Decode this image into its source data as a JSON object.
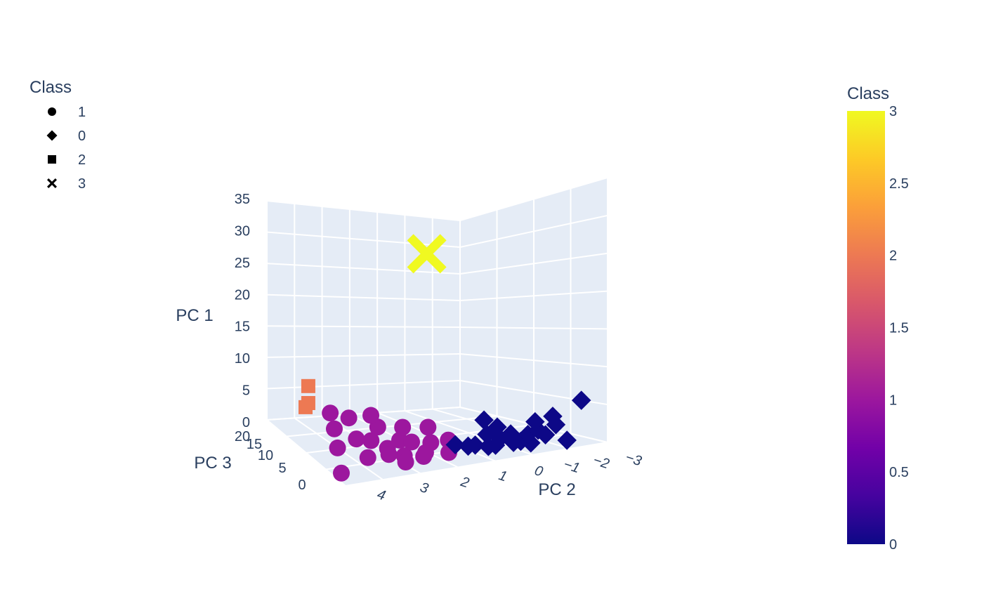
{
  "chart_data": {
    "type": "scatter",
    "dimensions": "3d",
    "title": "",
    "axes": {
      "x": {
        "label": "PC 2",
        "range": [
          -3,
          4
        ],
        "ticks": [
          "−3",
          "−2",
          "−1",
          "0",
          "1",
          "2",
          "3",
          "4"
        ]
      },
      "y": {
        "label": "PC 3",
        "range": [
          0,
          20
        ],
        "ticks": [
          "0",
          "5",
          "10",
          "15",
          "20"
        ]
      },
      "z": {
        "label": "PC 1",
        "range": [
          0,
          35
        ],
        "ticks": [
          "0",
          "5",
          "10",
          "15",
          "20",
          "25",
          "30",
          "35"
        ]
      }
    },
    "grid": true,
    "legend": {
      "title": "Class",
      "placement": "top-left",
      "items": [
        {
          "label": "1",
          "symbol": "circle"
        },
        {
          "label": "0",
          "symbol": "diamond"
        },
        {
          "label": "2",
          "symbol": "square"
        },
        {
          "label": "3",
          "symbol": "x"
        }
      ]
    },
    "colorbar": {
      "title": "Class",
      "placement": "right",
      "range": [
        0,
        3
      ],
      "ticks": [
        "0",
        "0.5",
        "1",
        "1.5",
        "2",
        "2.5",
        "3"
      ],
      "colorscale": [
        "#0d0887",
        "#46039f",
        "#7201a8",
        "#9c179e",
        "#bd3786",
        "#d8576b",
        "#ed7953",
        "#fb9f3a",
        "#fdca26",
        "#f0f921"
      ]
    },
    "series": [
      {
        "name": "1",
        "symbol": "circle",
        "color": "#9c179e",
        "points": [
          {
            "x": 3.9,
            "y": 2,
            "z": 1
          },
          {
            "x": 3.3,
            "y": 8,
            "z": 1.5
          },
          {
            "x": 3.0,
            "y": 11,
            "z": 3
          },
          {
            "x": 2.7,
            "y": 14,
            "z": 4
          },
          {
            "x": 2.4,
            "y": 12,
            "z": 4
          },
          {
            "x": 2.8,
            "y": 5,
            "z": 1
          },
          {
            "x": 2.6,
            "y": 9,
            "z": 2
          },
          {
            "x": 2.3,
            "y": 8,
            "z": 2
          },
          {
            "x": 2.1,
            "y": 6,
            "z": 1.5
          },
          {
            "x": 1.9,
            "y": 4,
            "z": 1
          },
          {
            "x": 1.8,
            "y": 10,
            "z": 3
          },
          {
            "x": 1.6,
            "y": 7,
            "z": 2
          },
          {
            "x": 1.5,
            "y": 3,
            "z": 1
          },
          {
            "x": 1.4,
            "y": 6,
            "z": 2
          },
          {
            "x": 1.2,
            "y": 9,
            "z": 3
          },
          {
            "x": 1.0,
            "y": 5,
            "z": 2
          },
          {
            "x": 0.8,
            "y": 3,
            "z": 1
          },
          {
            "x": 1.7,
            "y": 12,
            "z": 4
          },
          {
            "x": 0.6,
            "y": 8,
            "z": 3
          },
          {
            "x": 0.5,
            "y": 5,
            "z": 2
          },
          {
            "x": 2.0,
            "y": 3,
            "z": 0.5
          },
          {
            "x": 1.3,
            "y": 4,
            "z": 1
          },
          {
            "x": 2.2,
            "y": 5,
            "z": 1
          }
        ]
      },
      {
        "name": "0",
        "symbol": "diamond",
        "color": "#0d0887",
        "points": [
          {
            "x": 0.3,
            "y": 5,
            "z": 1
          },
          {
            "x": 0.1,
            "y": 4,
            "z": 1
          },
          {
            "x": -0.1,
            "y": 4,
            "z": 1
          },
          {
            "x": -0.3,
            "y": 3,
            "z": 1
          },
          {
            "x": -0.5,
            "y": 3,
            "z": 1
          },
          {
            "x": -0.6,
            "y": 5,
            "z": 2
          },
          {
            "x": -0.8,
            "y": 4,
            "z": 1.5
          },
          {
            "x": -1.0,
            "y": 3,
            "z": 1
          },
          {
            "x": -1.2,
            "y": 3,
            "z": 1
          },
          {
            "x": -1.3,
            "y": 2,
            "z": 1
          },
          {
            "x": -0.7,
            "y": 6,
            "z": 4
          },
          {
            "x": -0.9,
            "y": 5,
            "z": 3
          },
          {
            "x": -1.4,
            "y": 3,
            "z": 2
          },
          {
            "x": -1.5,
            "y": 2,
            "z": 3
          },
          {
            "x": -1.7,
            "y": 2,
            "z": 2
          },
          {
            "x": -1.8,
            "y": 1,
            "z": 4
          },
          {
            "x": -1.9,
            "y": 2,
            "z": 5
          },
          {
            "x": -2.1,
            "y": 1,
            "z": 1
          },
          {
            "x": -2.3,
            "y": 0,
            "z": 8
          },
          {
            "x": -1.6,
            "y": 3,
            "z": 4
          },
          {
            "x": -1.1,
            "y": 4,
            "z": 2
          }
        ]
      },
      {
        "name": "2",
        "symbol": "square",
        "color": "#ed7953",
        "points": [
          {
            "x": 2.5,
            "y": 20,
            "z": 5.5
          },
          {
            "x": 2.5,
            "y": 20,
            "z": 2.5
          },
          {
            "x": 2.6,
            "y": 20,
            "z": 1.8
          }
        ]
      },
      {
        "name": "3",
        "symbol": "x",
        "color": "#f0f921",
        "points": [
          {
            "x": 0.8,
            "y": 7,
            "z": 34
          }
        ]
      }
    ]
  }
}
